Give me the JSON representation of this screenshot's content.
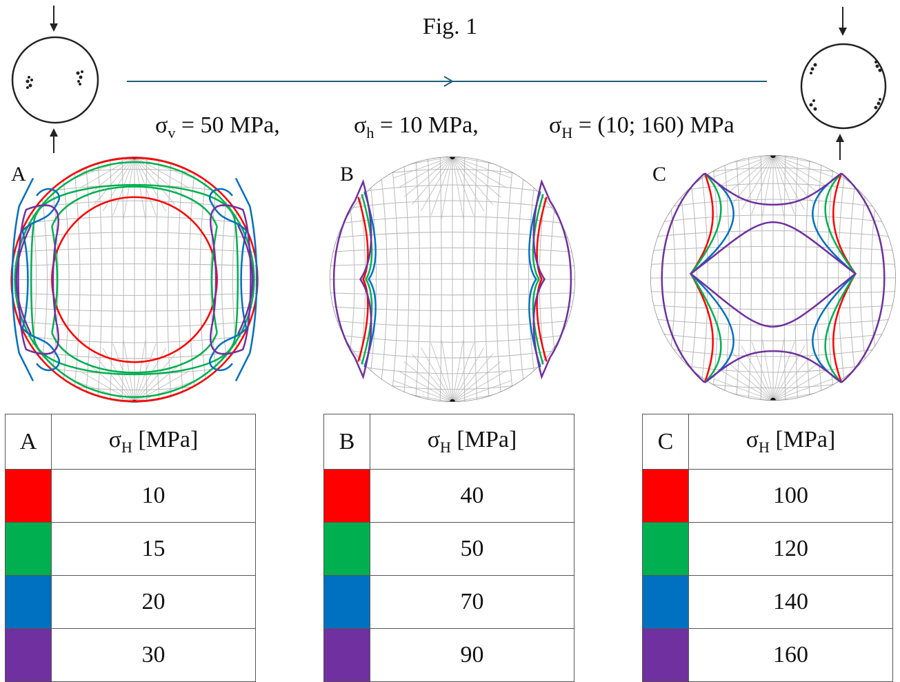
{
  "title": "Fig. 1",
  "stress": {
    "sv": {
      "symbol": "σ",
      "sub": "v",
      "text": " = 50 MPa,"
    },
    "sh": {
      "symbol": "σ",
      "sub": "h",
      "text": " = 10 MPa,"
    },
    "sH": {
      "symbol": "σ",
      "sub": "H",
      "text": " = (10; 160) MPa"
    }
  },
  "colors": {
    "red": "#ff0000",
    "green": "#00b050",
    "blue": "#0070c0",
    "purple": "#7030a0",
    "grid": "#b8b8b8",
    "arrow": "#1f5f7a"
  },
  "panels": [
    {
      "label": "A",
      "header_symbol": "σ",
      "header_sub": "H",
      "header_unit": " [MPa]",
      "rows": [
        {
          "color": "red",
          "value": "10"
        },
        {
          "color": "green",
          "value": "15"
        },
        {
          "color": "blue",
          "value": "20"
        },
        {
          "color": "purple",
          "value": "30"
        }
      ]
    },
    {
      "label": "B",
      "header_symbol": "σ",
      "header_sub": "H",
      "header_unit": " [MPa]",
      "rows": [
        {
          "color": "red",
          "value": "40"
        },
        {
          "color": "green",
          "value": "50"
        },
        {
          "color": "blue",
          "value": "70"
        },
        {
          "color": "purple",
          "value": "90"
        }
      ]
    },
    {
      "label": "C",
      "header_symbol": "σ",
      "header_sub": "H",
      "header_unit": " [MPa]",
      "rows": [
        {
          "color": "red",
          "value": "100"
        },
        {
          "color": "green",
          "value": "120"
        },
        {
          "color": "blue",
          "value": "140"
        },
        {
          "color": "purple",
          "value": "160"
        }
      ]
    }
  ]
}
